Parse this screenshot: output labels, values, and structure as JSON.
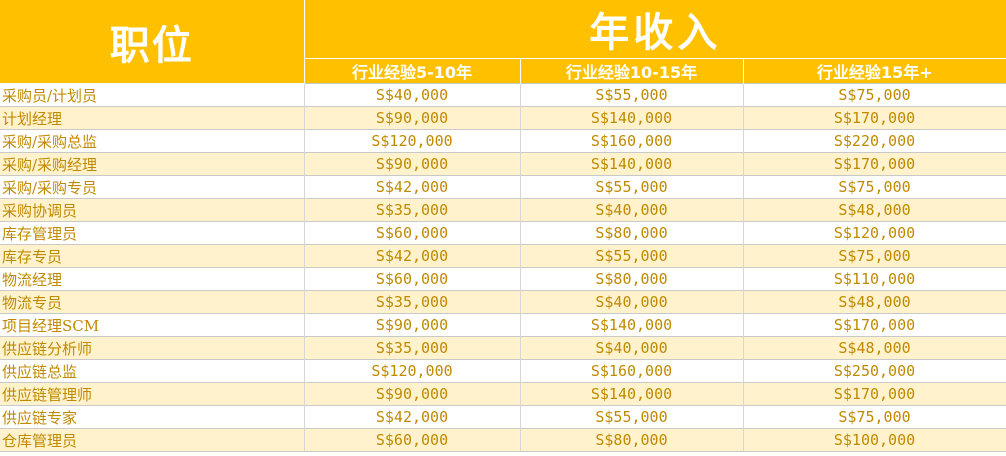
{
  "header": {
    "position_label": "职位",
    "income_label": "年收入",
    "experience_levels": [
      "行业经验5-10年",
      "行业经验10-15年",
      "行业经验15年+"
    ]
  },
  "rows": [
    {
      "title": "采购员/计划员",
      "salaries": [
        "S$40,000",
        "S$55,000",
        "S$75,000"
      ]
    },
    {
      "title": "计划经理",
      "salaries": [
        "S$90,000",
        "S$140,000",
        "S$170,000"
      ]
    },
    {
      "title": "采购/采购总监",
      "salaries": [
        "S$120,000",
        "S$160,000",
        "S$220,000"
      ]
    },
    {
      "title": "采购/采购经理",
      "salaries": [
        "S$90,000",
        "S$140,000",
        "S$170,000"
      ]
    },
    {
      "title": "采购/采购专员",
      "salaries": [
        "S$42,000",
        "S$55,000",
        "S$75,000"
      ]
    },
    {
      "title": "采购协调员",
      "salaries": [
        "S$35,000",
        "S$40,000",
        "S$48,000"
      ]
    },
    {
      "title": "库存管理员",
      "salaries": [
        "S$60,000",
        "S$80,000",
        "S$120,000"
      ]
    },
    {
      "title": "库存专员",
      "salaries": [
        "S$42,000",
        "S$55,000",
        "S$75,000"
      ]
    },
    {
      "title": "物流经理",
      "salaries": [
        "S$60,000",
        "S$80,000",
        "S$110,000"
      ]
    },
    {
      "title": "物流专员",
      "salaries": [
        "S$35,000",
        "S$40,000",
        "S$48,000"
      ]
    },
    {
      "title": "项目经理SCM",
      "salaries": [
        "S$90,000",
        "S$140,000",
        "S$170,000"
      ]
    },
    {
      "title": "供应链分析师",
      "salaries": [
        "S$35,000",
        "S$40,000",
        "S$48,000"
      ]
    },
    {
      "title": "供应链总监",
      "salaries": [
        "S$120,000",
        "S$160,000",
        "S$250,000"
      ]
    },
    {
      "title": "供应链管理师",
      "salaries": [
        "S$90,000",
        "S$140,000",
        "S$170,000"
      ]
    },
    {
      "title": "供应链专家",
      "salaries": [
        "S$42,000",
        "S$55,000",
        "S$75,000"
      ]
    },
    {
      "title": "仓库管理员",
      "salaries": [
        "S$60,000",
        "S$80,000",
        "S$100,000"
      ]
    }
  ],
  "colors": {
    "header_bg": "#FFC000",
    "header_text": "#FFFFFF",
    "stripe_bg": "#FFF2CC",
    "cell_text": "#C08A00"
  }
}
